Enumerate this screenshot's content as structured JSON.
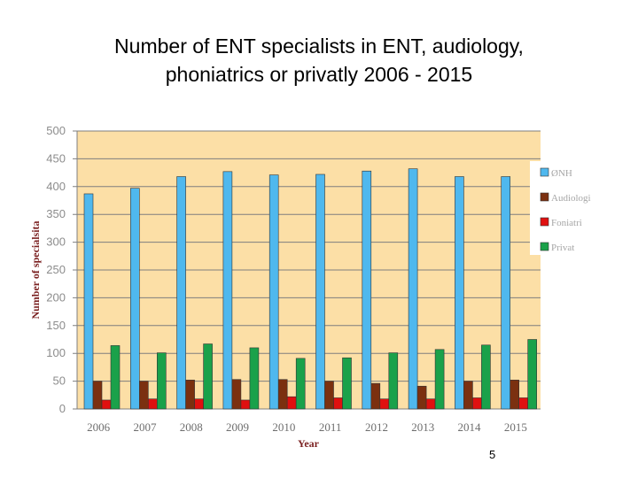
{
  "slide": {
    "page_number": "5"
  },
  "chart_data": {
    "type": "bar",
    "title_line1": "Number of ENT specialists in ENT, audiology,",
    "title_line2": "phoniatrics or privatly 2006 - 2015",
    "xlabel": "Year",
    "ylabel": "Number of specialsita",
    "ylim": [
      0,
      500
    ],
    "yticks": [
      "0",
      "50",
      "100",
      "150",
      "200",
      "250",
      "300",
      "350",
      "400",
      "450",
      "500"
    ],
    "categories": [
      "2006",
      "2007",
      "2008",
      "2009",
      "2010",
      "2011",
      "2012",
      "2013",
      "2014",
      "2015"
    ],
    "legend_position": "right",
    "plot_background": "#fcdfa6",
    "series": [
      {
        "name": "ØNH",
        "color": "#4fb8ee",
        "values": [
          387,
          397,
          418,
          427,
          421,
          422,
          428,
          432,
          418,
          418
        ]
      },
      {
        "name": "Audiologi",
        "color": "#7b3010",
        "values": [
          50,
          50,
          52,
          53,
          53,
          50,
          46,
          41,
          50,
          52
        ]
      },
      {
        "name": "Foniatri",
        "color": "#e01010",
        "values": [
          16,
          18,
          18,
          16,
          22,
          20,
          18,
          18,
          20,
          20
        ]
      },
      {
        "name": "Privat",
        "color": "#1aa14a",
        "values": [
          114,
          101,
          117,
          110,
          91,
          92,
          101,
          107,
          115,
          125
        ]
      }
    ]
  }
}
